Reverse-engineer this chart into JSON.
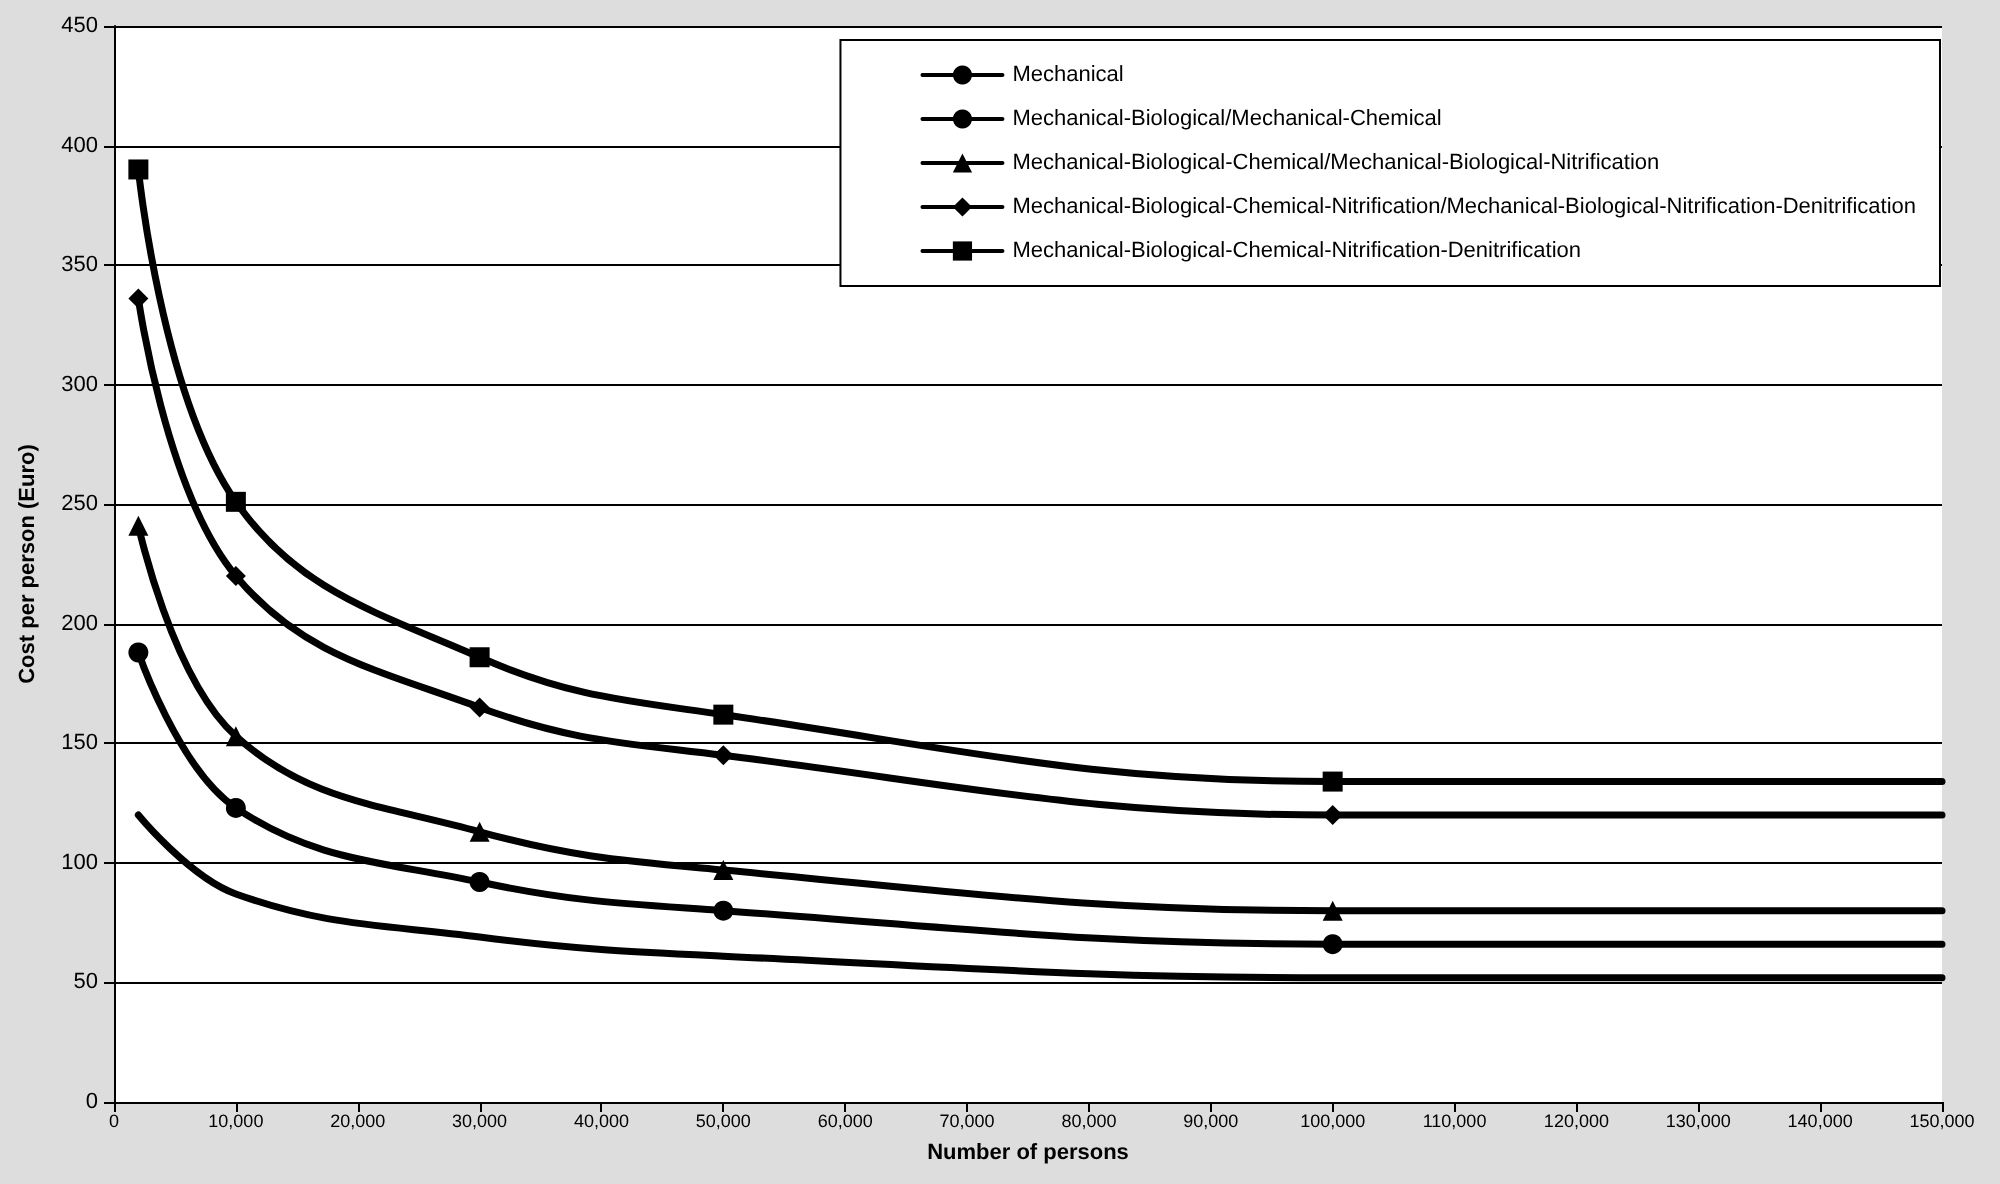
{
  "chart_data": {
    "type": "line",
    "xlabel": "Number of persons",
    "ylabel": "Cost per person (Euro)",
    "xlim": [
      0,
      150000
    ],
    "xticks": [
      0,
      {
        "value": 10000,
        "label": "10,000"
      },
      {
        "value": 20000,
        "label": "20,000"
      },
      {
        "value": 30000,
        "label": "30,000"
      },
      {
        "value": 40000,
        "label": "40,000"
      },
      {
        "value": 50000,
        "label": "50,000"
      },
      {
        "value": 60000,
        "label": "60,000"
      },
      {
        "value": 70000,
        "label": "70,000"
      },
      {
        "value": 80000,
        "label": "80,000"
      },
      {
        "value": 90000,
        "label": "90,000"
      },
      {
        "value": 100000,
        "label": "100,000"
      },
      {
        "value": 110000,
        "label": "110,000"
      },
      {
        "value": 120000,
        "label": "120,000"
      },
      {
        "value": 130000,
        "label": "130,000"
      },
      {
        "value": 140000,
        "label": "140,000"
      },
      {
        "value": 150000,
        "label": "150,000"
      }
    ],
    "ylim": [
      0,
      450
    ],
    "yticks": [
      0,
      50,
      100,
      150,
      200,
      250,
      300,
      350,
      400,
      450
    ],
    "x": [
      2000,
      10000,
      30000,
      50000,
      100000,
      150000
    ],
    "grid": "y",
    "legend": "top right",
    "line_style": "solid",
    "series": [
      {
        "name": "Mechanical",
        "color": "#000000",
        "marker": "none",
        "values": [
          120,
          87,
          69,
          61,
          52,
          52
        ]
      },
      {
        "name": "Mechanical-Biological/Mechanical-Chemical",
        "color": "#000000",
        "marker": "circle",
        "values": [
          188,
          123,
          92,
          80,
          66,
          66
        ]
      },
      {
        "name": "Mechanical-Biological-Chemical/Mechanical-Biological-Nitrification",
        "color": "#000000",
        "marker": "triangle",
        "values": [
          241,
          153,
          113,
          97,
          80,
          80
        ]
      },
      {
        "name": "Mechanical-Biological-Chemical-Nitrification/Mechanical-Biological-Nitrification-Denitrification",
        "color": "#000000",
        "marker": "diamond",
        "values": [
          336,
          220,
          165,
          145,
          120,
          120
        ]
      },
      {
        "name": "Mechanical-Biological-Chemical-Nitrification-Denitrification",
        "color": "#000000",
        "marker": "square",
        "values": [
          390,
          251,
          186,
          162,
          134,
          134
        ]
      }
    ]
  }
}
